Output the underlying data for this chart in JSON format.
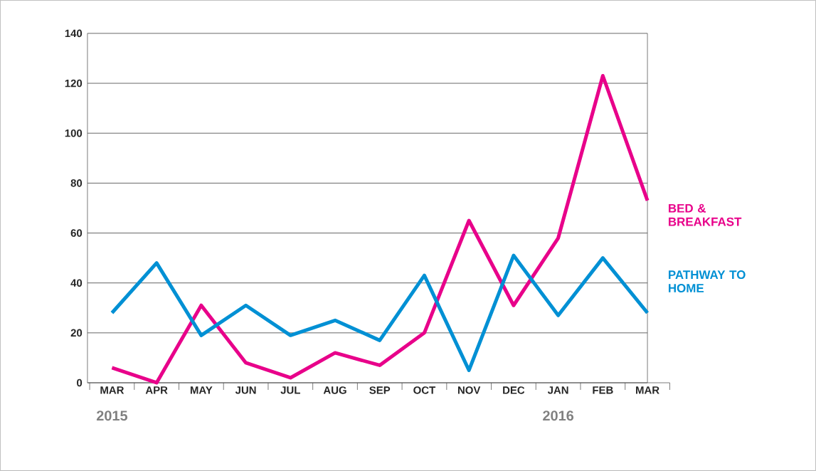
{
  "chart_data": {
    "type": "line",
    "categories": [
      "MAR",
      "APR",
      "MAY",
      "JUN",
      "JUL",
      "AUG",
      "SEP",
      "OCT",
      "NOV",
      "DEC",
      "JAN",
      "FEB",
      "MAR"
    ],
    "series": [
      {
        "name": "BED & BREAKFAST",
        "color": "#e8008a",
        "values": [
          6,
          0,
          31,
          8,
          2,
          12,
          7,
          20,
          65,
          31,
          58,
          123,
          73
        ]
      },
      {
        "name": "PATHWAY TO HOME",
        "color": "#0090d4",
        "values": [
          28,
          48,
          19,
          31,
          19,
          25,
          17,
          43,
          5,
          51,
          27,
          50,
          28
        ]
      }
    ],
    "ylim": [
      0,
      140
    ],
    "yticks": [
      0,
      20,
      40,
      60,
      80,
      100,
      120,
      140
    ],
    "grid": "y",
    "legend": "right",
    "marker": "none",
    "line_style": "solid",
    "annotations": [
      "2015",
      "2016"
    ]
  }
}
